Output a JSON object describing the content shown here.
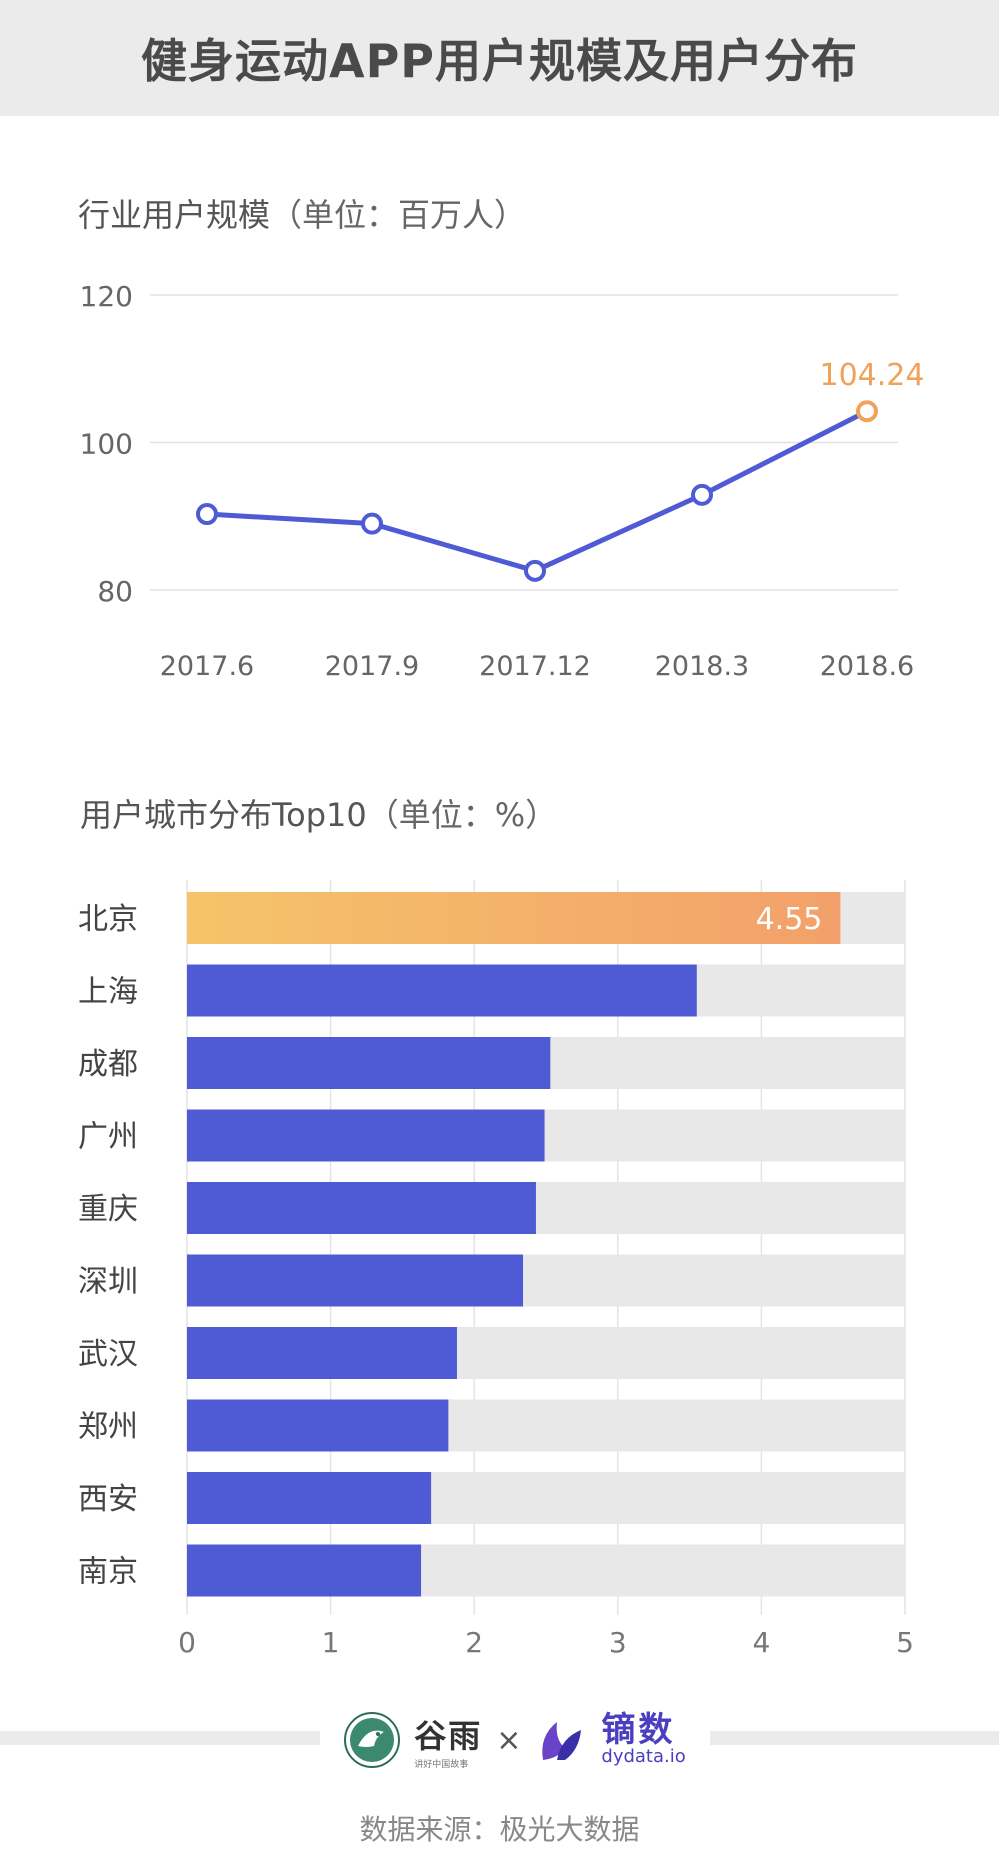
{
  "header": {
    "title": "健身运动APP用户规模及用户分布"
  },
  "line_section": {
    "title": "行业用户规模",
    "unit": "（单位：百万人）"
  },
  "bar_section": {
    "title": "用户城市分布Top10",
    "unit": "（单位：%）"
  },
  "chart_data": [
    {
      "type": "line",
      "x": [
        "2017.6",
        "2017.9",
        "2017.12",
        "2018.3",
        "2018.6"
      ],
      "series": [
        {
          "values": [
            90.3,
            89.0,
            82.6,
            92.9,
            104.24
          ]
        }
      ],
      "yticks": [
        80,
        100,
        120
      ],
      "ylim": [
        80,
        120
      ],
      "annotation": {
        "index": 4,
        "label": "104.24"
      },
      "grid": true,
      "colors": {
        "line": "#4f5bd5",
        "highlight": "#f0a25b"
      }
    },
    {
      "type": "bar",
      "orientation": "horizontal",
      "categories": [
        "北京",
        "上海",
        "成都",
        "广州",
        "重庆",
        "深圳",
        "武汉",
        "郑州",
        "西安",
        "南京"
      ],
      "values": [
        4.55,
        3.55,
        2.53,
        2.49,
        2.43,
        2.34,
        1.88,
        1.82,
        1.7,
        1.63
      ],
      "xlim": [
        0,
        5
      ],
      "xticks": [
        0,
        1,
        2,
        3,
        4,
        5
      ],
      "value_label": {
        "index": 0,
        "label": "4.55"
      },
      "grid": true,
      "colors": {
        "bar": "#4f5bd5",
        "highlight_start": "#f5c46a",
        "highlight_end": "#f3a06a",
        "track": "#e8e8e8"
      }
    }
  ],
  "footer": {
    "logo1_name": "谷雨",
    "logo1_sub": "讲好中国故事",
    "times": "×",
    "logo2_name": "镝数",
    "logo2_sub": "dydata.io",
    "source": "数据来源：极光大数据"
  }
}
